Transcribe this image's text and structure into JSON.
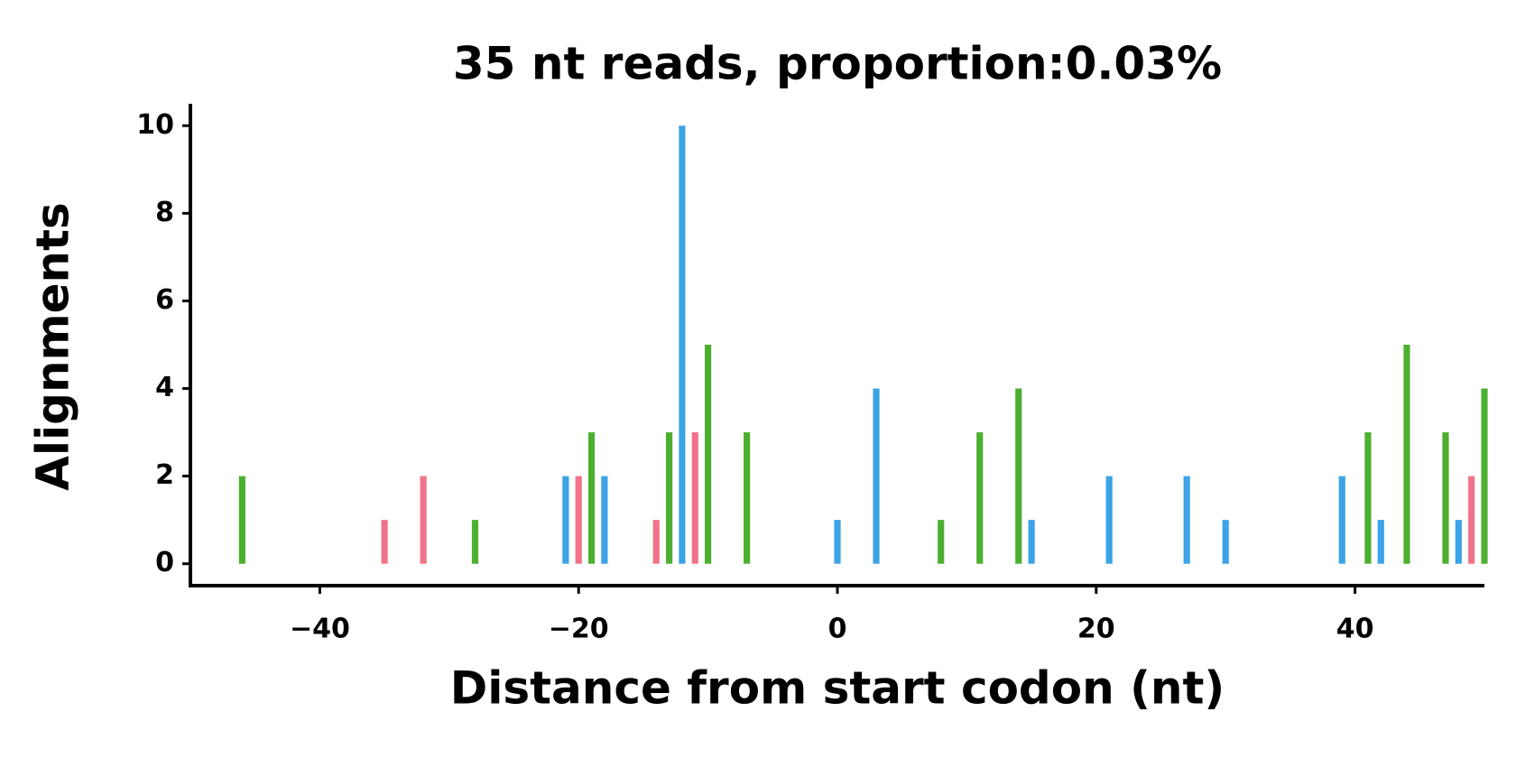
{
  "chart_data": {
    "type": "bar",
    "title": "35 nt reads, proportion:0.03%",
    "x_label": "Distance from start codon (nt)",
    "y_label": "Alignments",
    "xlim": [
      -50,
      50
    ],
    "xticks": [
      {
        "value": -40,
        "label": "−40"
      },
      {
        "value": -20,
        "label": "−20"
      },
      0,
      20,
      40
    ],
    "ylim": [
      -0.5,
      10.5
    ],
    "yticks": [
      0,
      2,
      4,
      6,
      8,
      10
    ],
    "bar_width": 0.5,
    "series": [
      {
        "color": "#4daf2f",
        "x": [
          -46,
          -28,
          -19,
          -13,
          -10,
          -7,
          8,
          11,
          14,
          41,
          44,
          47,
          50
        ],
        "values": [
          2,
          1,
          3,
          3,
          5,
          3,
          1,
          3,
          4,
          3,
          5,
          3,
          4
        ]
      },
      {
        "color": "#f0728a",
        "x": [
          -35,
          -32,
          -20,
          -14,
          -11,
          49
        ],
        "values": [
          1,
          2,
          2,
          1,
          3,
          2
        ]
      },
      {
        "color": "#3ba3e6",
        "x": [
          -21,
          -18,
          -12,
          0,
          3,
          15,
          21,
          27,
          30,
          39,
          42,
          48
        ],
        "values": [
          2,
          2,
          10,
          1,
          4,
          1,
          2,
          2,
          1,
          2,
          1,
          1
        ]
      }
    ]
  }
}
